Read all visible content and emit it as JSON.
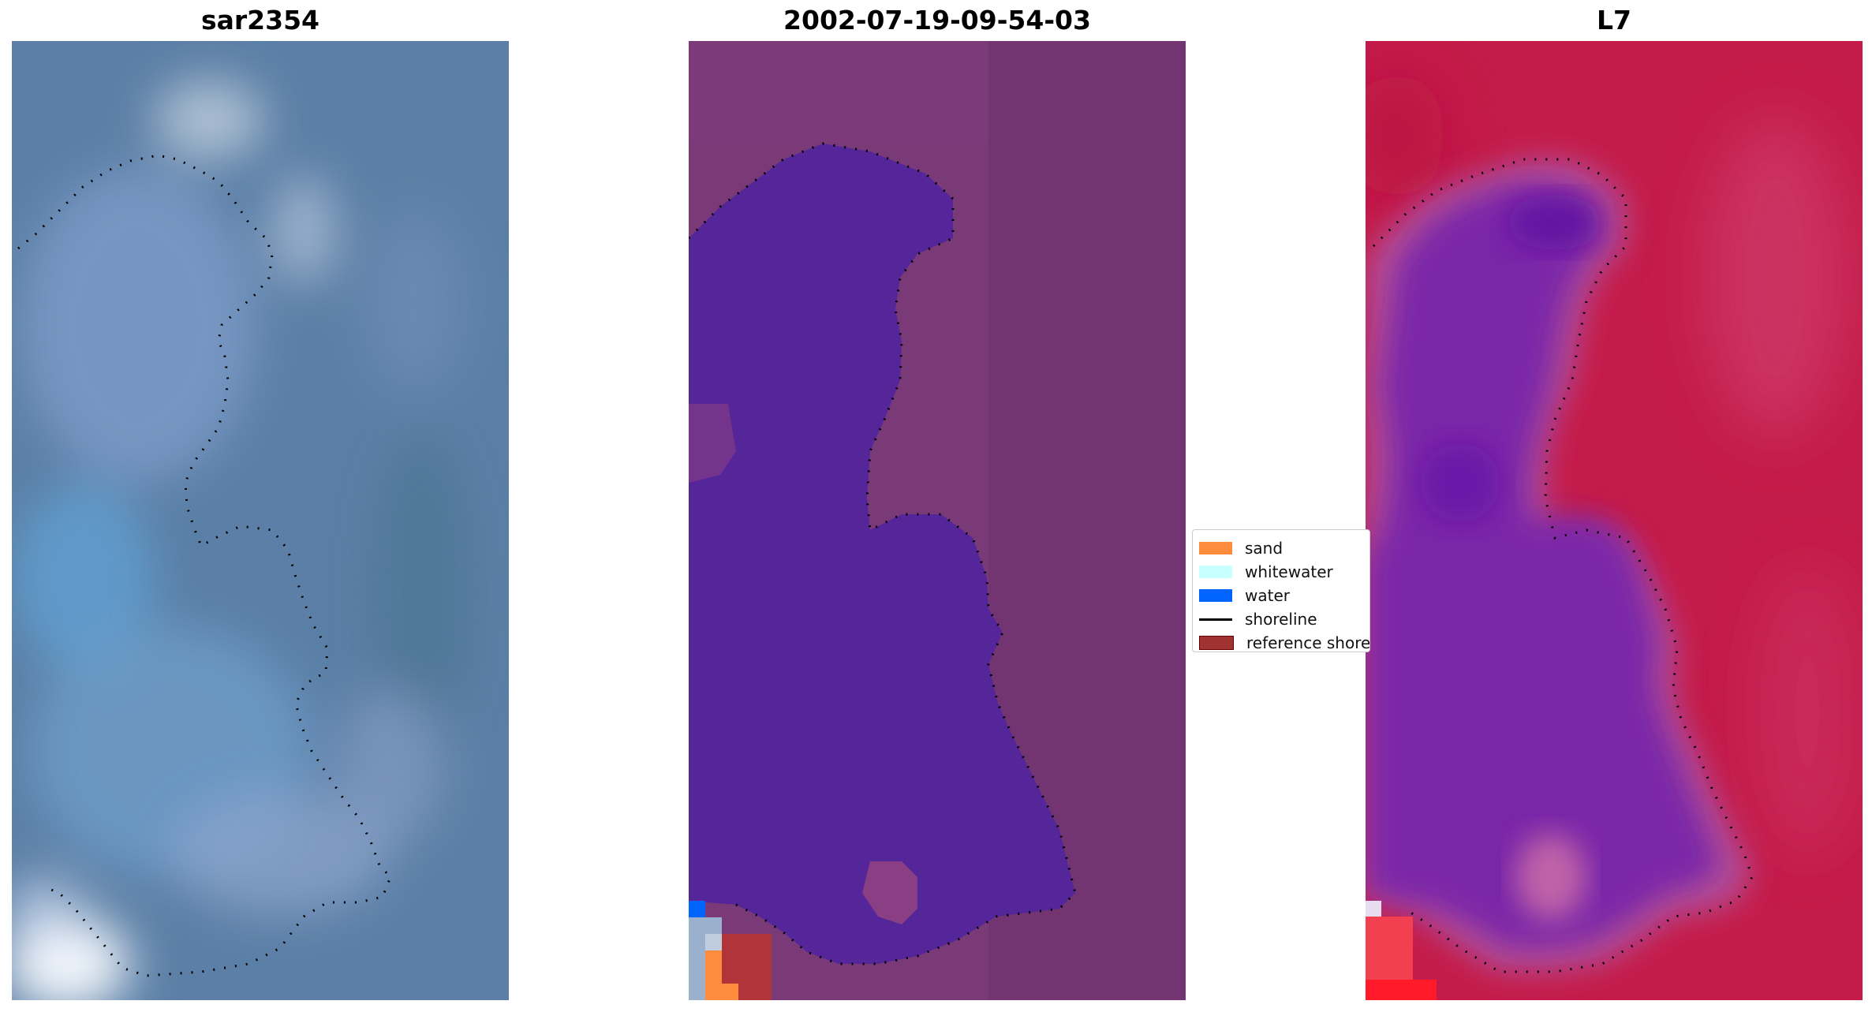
{
  "panels": [
    {
      "title": "sar2354"
    },
    {
      "title": "2002-07-19-09-54-03"
    },
    {
      "title": "L7"
    }
  ],
  "legend": {
    "items": [
      {
        "label": "sand",
        "color": "#ff8c3c",
        "kind": "patch"
      },
      {
        "label": "whitewater",
        "color": "#c8ffff",
        "kind": "patch"
      },
      {
        "label": "water",
        "color": "#0064ff",
        "kind": "patch"
      },
      {
        "label": "shoreline",
        "color": "#000000",
        "kind": "line"
      },
      {
        "label": "reference shoreline",
        "color": "#a03232",
        "kind": "patch"
      }
    ]
  },
  "colors": {
    "rgb_base": "#5a80a8",
    "classified_land": "#7a3a78",
    "classified_water_region": "#55259a",
    "ndwi_land": "#c41c4a",
    "ndwi_water": "#7a28a8",
    "shoreline_dots": "#000000"
  }
}
